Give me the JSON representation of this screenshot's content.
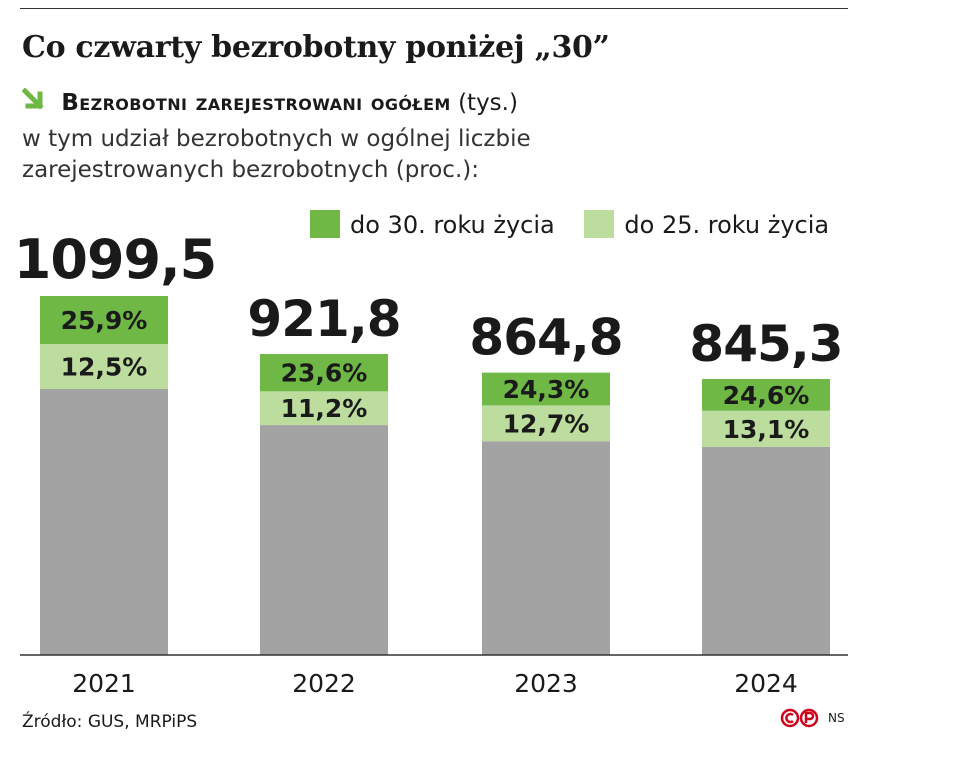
{
  "header": {
    "title": "Co czwarty bezrobotny poniżej „30”",
    "subtitle_bold": "Bezrobotni zarejestrowani ogółem",
    "subtitle_unit": "(tys.)",
    "description": "w tym udział bezrobotnych w ogólnej liczbie zarejestrowanych bezrobotnych (proc.):"
  },
  "footer": {
    "source": "Źródło: GUS, MRPiPS",
    "credit": "NS"
  },
  "colors": {
    "total": "#a3a3a3",
    "under30": "#6fb845",
    "under25": "#bddd9f",
    "arrow": "#6fb845"
  },
  "chart_data": {
    "type": "bar",
    "categories": [
      "2021",
      "2022",
      "2023",
      "2024"
    ],
    "total_labels": [
      "1099,5",
      "921,8",
      "864,8",
      "845,3"
    ],
    "series": [
      {
        "name": "Bezrobotni zarejestrowani ogółem",
        "values": [
          1099.5,
          921.8,
          864.8,
          845.3
        ]
      },
      {
        "name": "do 30. roku życia",
        "values": [
          25.9,
          23.6,
          24.3,
          24.6
        ],
        "labels": [
          "25,9%",
          "23,6%",
          "24,3%",
          "24,6%"
        ]
      },
      {
        "name": "do 25. roku życia",
        "values": [
          12.5,
          11.2,
          12.7,
          13.1
        ],
        "labels": [
          "12,5%",
          "11,2%",
          "12,7%",
          "13,1%"
        ]
      }
    ],
    "legend": [
      "do 30. roku życia",
      "do 25. roku życia"
    ],
    "legend_position": "top-right",
    "ylim": [
      0,
      1099.5
    ],
    "grid": false
  }
}
